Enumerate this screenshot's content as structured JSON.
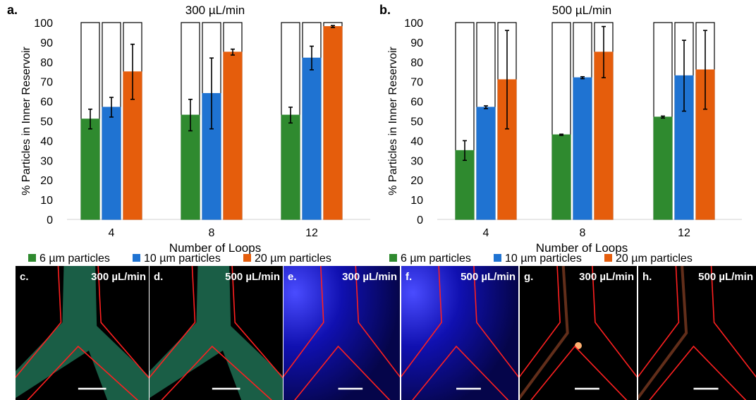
{
  "chart_data": [
    {
      "type": "bar",
      "panel_label": "a.",
      "title": "300 µL/min",
      "xlabel": "Number of Loops",
      "ylabel": "% Particles in Inner Reservoir",
      "ylim": [
        0,
        100
      ],
      "yticks": [
        0,
        10,
        20,
        30,
        40,
        50,
        60,
        70,
        80,
        90,
        100
      ],
      "categories": [
        "4",
        "8",
        "12"
      ],
      "background_bar_value": 100,
      "series": [
        {
          "name": "6 µm particles",
          "color": "#2f8a2f",
          "values": [
            51,
            53,
            53
          ],
          "errors": [
            5,
            8,
            4
          ]
        },
        {
          "name": "10 µm particles",
          "color": "#1f73d2",
          "values": [
            57,
            64,
            82
          ],
          "errors": [
            5,
            18,
            6
          ]
        },
        {
          "name": "20 µm particles",
          "color": "#e55d0c",
          "values": [
            75,
            85,
            98
          ],
          "errors": [
            14,
            1.5,
            0.5
          ]
        }
      ]
    },
    {
      "type": "bar",
      "panel_label": "b.",
      "title": "500 µL/min",
      "xlabel": "Number of Loops",
      "ylabel": "% Particles in Inner Reservoir",
      "ylim": [
        0,
        100
      ],
      "yticks": [
        0,
        10,
        20,
        30,
        40,
        50,
        60,
        70,
        80,
        90,
        100
      ],
      "categories": [
        "4",
        "8",
        "12"
      ],
      "background_bar_value": 100,
      "series": [
        {
          "name": "6 µm particles",
          "color": "#2f8a2f",
          "values": [
            35,
            43,
            52
          ],
          "errors": [
            5,
            0.3,
            0.5
          ]
        },
        {
          "name": "10 µm particles",
          "color": "#1f73d2",
          "values": [
            57,
            72,
            73
          ],
          "errors": [
            0.7,
            0.5,
            18
          ]
        },
        {
          "name": "20 µm particles",
          "color": "#e55d0c",
          "values": [
            71,
            85,
            76
          ],
          "errors": [
            25,
            13,
            20
          ]
        }
      ]
    }
  ],
  "micrographs": [
    {
      "label": "c.",
      "flow_rate": "300 µL/min",
      "fluorescence": "green",
      "particles": "6 µm"
    },
    {
      "label": "d.",
      "flow_rate": "500 µL/min",
      "fluorescence": "green",
      "particles": "6 µm"
    },
    {
      "label": "e.",
      "flow_rate": "300 µL/min",
      "fluorescence": "blue",
      "particles": "10 µm"
    },
    {
      "label": "f.",
      "flow_rate": "500 µL/min",
      "fluorescence": "blue",
      "particles": "10 µm"
    },
    {
      "label": "g.",
      "flow_rate": "300 µL/min",
      "fluorescence": "orange",
      "particles": "20 µm"
    },
    {
      "label": "h.",
      "flow_rate": "500 µL/min",
      "fluorescence": "orange",
      "particles": "20 µm"
    }
  ]
}
